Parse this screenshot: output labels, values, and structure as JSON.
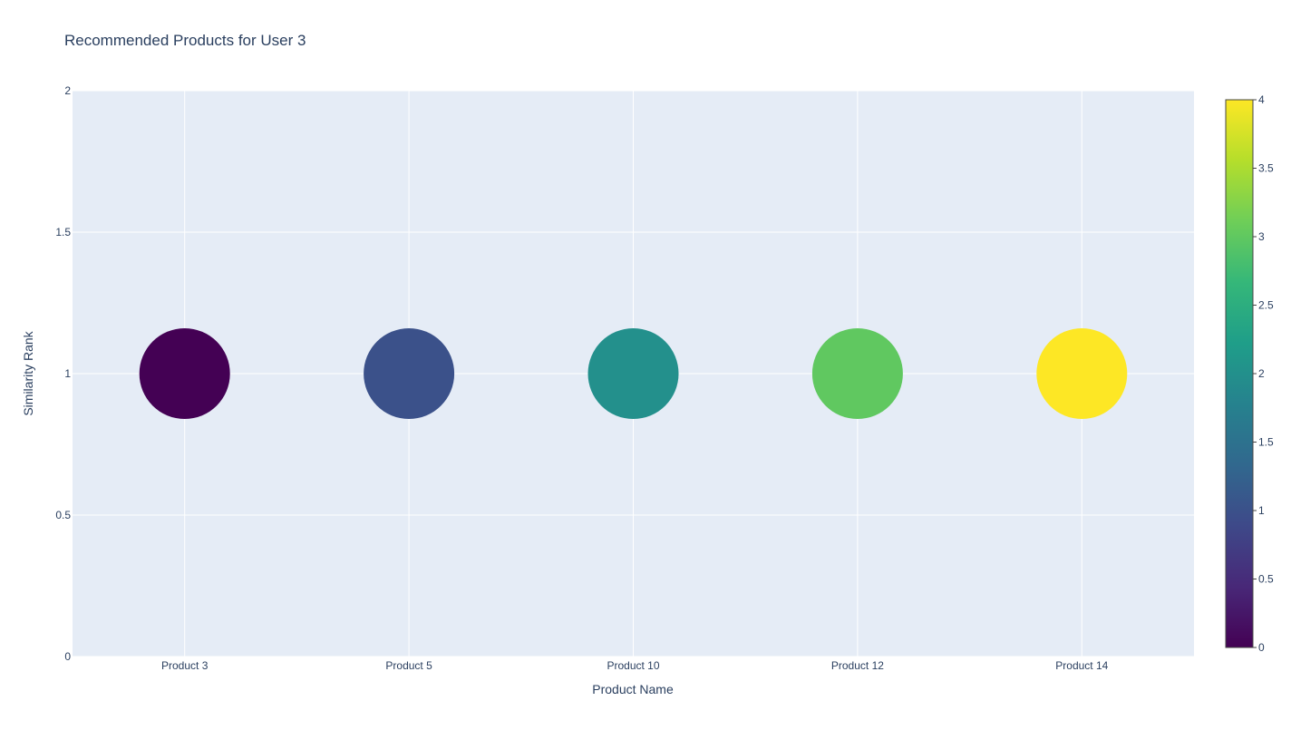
{
  "chart_data": {
    "type": "scatter",
    "title": "Recommended Products for User 3",
    "xlabel": "Product Name",
    "ylabel": "Similarity Rank",
    "categories": [
      "Product 3",
      "Product 5",
      "Product 10",
      "Product 12",
      "Product 14"
    ],
    "y": [
      1,
      1,
      1,
      1,
      1
    ],
    "color_values": [
      0,
      1,
      2,
      3,
      4
    ],
    "ylim": [
      0,
      2
    ],
    "yticks": [
      "0",
      "0.5",
      "1",
      "1.5",
      "2"
    ],
    "grid": true,
    "colorbar": {
      "range": [
        0,
        4
      ],
      "ticks": [
        "0",
        "0.5",
        "1",
        "1.5",
        "2",
        "2.5",
        "3",
        "3.5",
        "4"
      ],
      "colorscale": "Viridis",
      "position": "right"
    },
    "colors": {
      "plot_background": "#e5ecf6",
      "grid": "#ffffff",
      "text": "#2a3f5f",
      "viridis": [
        "#440154",
        "#482878",
        "#3e4989",
        "#31688e",
        "#26828e",
        "#1f9e89",
        "#35b779",
        "#6ece58",
        "#b5de2b",
        "#fde725"
      ]
    }
  }
}
